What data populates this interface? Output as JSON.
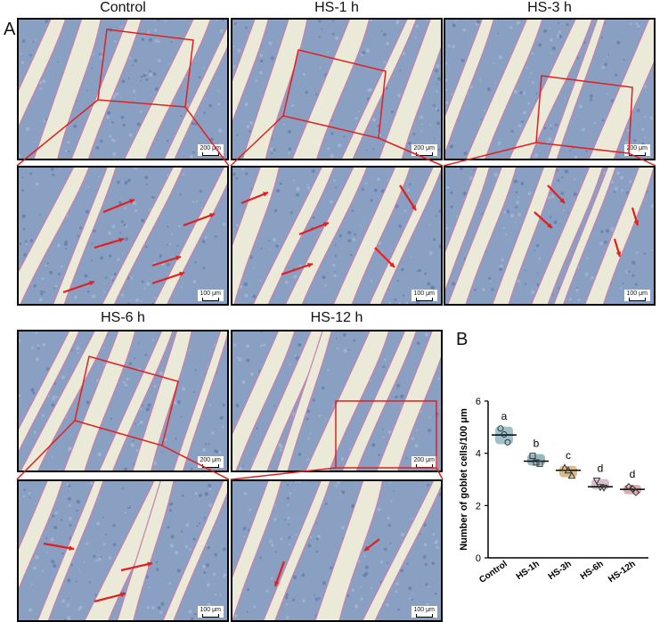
{
  "panel_a": {
    "letter": "A",
    "titles": [
      "Control",
      "HS-1 h",
      "HS-3 h",
      "HS-6 h",
      "HS-12 h"
    ],
    "scale_top": "200 μm",
    "scale_bottom": "100 μm"
  },
  "panel_b": {
    "letter": "B"
  },
  "colors": {
    "tissue": "#8aa0c2",
    "lumen": "#ebe9d8",
    "mucus": "#c77fae",
    "annotation": "#e02020"
  },
  "chart_data": {
    "type": "scatter",
    "ylabel": "Number of  goblet cells/100 μm",
    "ylim": [
      0,
      6
    ],
    "yticks": [
      "0",
      "2",
      "4",
      "6"
    ],
    "categories": [
      "Control",
      "HS-1h",
      "HS-3h",
      "HS-6h",
      "HS-12h"
    ],
    "means": [
      4.7,
      3.7,
      3.35,
      2.72,
      2.62
    ],
    "points": [
      [
        4.95,
        4.72,
        4.42
      ],
      [
        3.9,
        3.65,
        3.6
      ],
      [
        3.45,
        3.35,
        3.15
      ],
      [
        2.95,
        2.7,
        2.68
      ],
      [
        2.72,
        2.65,
        2.5
      ]
    ],
    "letters": [
      "a",
      "b",
      "c",
      "d",
      "d"
    ],
    "series_colors": [
      "#4c8fa0",
      "#3f7f8c",
      "#b8862a",
      "#b888a8",
      "#b86a6a"
    ]
  }
}
